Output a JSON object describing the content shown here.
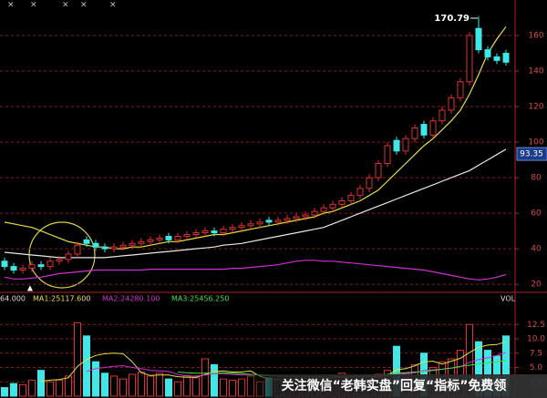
{
  "chart_data": [
    {
      "type": "candlestick",
      "open": [
        33,
        30,
        28,
        29,
        31,
        30,
        33,
        34,
        37,
        45,
        43,
        41,
        40,
        41,
        42,
        43,
        44,
        45,
        47,
        45,
        47,
        48,
        49,
        50,
        49,
        51,
        52,
        53,
        54,
        56,
        55,
        56,
        57,
        58,
        59,
        61,
        63,
        65,
        67,
        70,
        74,
        80,
        88,
        101,
        95,
        102,
        110,
        104,
        112,
        118,
        125,
        134,
        164,
        152,
        148,
        150
      ],
      "high": [
        35,
        32,
        31,
        33,
        33,
        35,
        36,
        39,
        44,
        47,
        45,
        43,
        43,
        44,
        45,
        46,
        47,
        48,
        49,
        49,
        50,
        51,
        52,
        52,
        53,
        54,
        55,
        56,
        57,
        58,
        58,
        59,
        60,
        61,
        63,
        65,
        67,
        69,
        72,
        76,
        82,
        90,
        100,
        103,
        104,
        110,
        112,
        114,
        120,
        127,
        136,
        162,
        170.79,
        154,
        150,
        152
      ],
      "low": [
        28,
        26,
        26,
        27,
        28,
        28,
        31,
        32,
        35,
        41,
        39,
        38,
        38,
        39,
        40,
        41,
        42,
        43,
        43,
        43,
        45,
        46,
        47,
        47,
        47,
        49,
        50,
        51,
        52,
        53,
        53,
        54,
        55,
        56,
        57,
        59,
        61,
        63,
        65,
        68,
        72,
        78,
        86,
        93,
        93,
        100,
        102,
        102,
        110,
        116,
        123,
        132,
        150,
        146,
        144,
        143
      ],
      "close": [
        30,
        28,
        29,
        31,
        30,
        33,
        34,
        37,
        42,
        43,
        41,
        40,
        41,
        42,
        43,
        44,
        45,
        46,
        45,
        47,
        48,
        49,
        50,
        49,
        51,
        52,
        53,
        54,
        55,
        55,
        56,
        57,
        58,
        59,
        61,
        63,
        65,
        67,
        70,
        74,
        80,
        88,
        98,
        95,
        102,
        108,
        104,
        112,
        118,
        125,
        134,
        160,
        152,
        148,
        146,
        145
      ],
      "up_color": "#e03030",
      "down_color": "#3ee8e8",
      "lines": [
        {
          "color": "#e8e040",
          "values": [
            55,
            54,
            53,
            52,
            50,
            48,
            46,
            44,
            43,
            42,
            41,
            41,
            40,
            40,
            41,
            41,
            42,
            43,
            44,
            44,
            45,
            46,
            47,
            48,
            48,
            49,
            50,
            51,
            52,
            53,
            54,
            55,
            56,
            57,
            58,
            60,
            61,
            63,
            65,
            67,
            70,
            73,
            78,
            83,
            88,
            93,
            98,
            102,
            107,
            112,
            118,
            127,
            138,
            150,
            158,
            165
          ]
        },
        {
          "color": "#e8e8e8",
          "values": [
            38,
            37.5,
            37,
            36.5,
            36,
            35.5,
            35,
            35,
            35,
            35,
            35,
            35,
            35.5,
            36,
            36.5,
            37,
            37.5,
            38,
            38.5,
            39,
            39.5,
            40,
            40.5,
            41,
            42,
            42.5,
            43,
            44,
            45,
            46,
            47,
            48,
            49,
            50,
            51,
            52,
            54,
            56,
            58,
            60,
            62,
            64,
            66,
            68,
            70,
            72,
            74,
            76,
            78,
            80,
            82,
            84,
            87,
            90,
            93,
            96
          ]
        },
        {
          "color": "#d030d0",
          "values": [
            24,
            23,
            23,
            23.5,
            24,
            25,
            26,
            26.5,
            27,
            27.5,
            28,
            28,
            28,
            28,
            28,
            28,
            28.5,
            28.5,
            28.5,
            28.5,
            28.5,
            28.5,
            28.5,
            28.5,
            28.5,
            29,
            29,
            29.5,
            30,
            30.5,
            31,
            32,
            33,
            33.5,
            33.5,
            33,
            33,
            32.5,
            32,
            31.5,
            31,
            30.5,
            30,
            29.5,
            29,
            28.5,
            28,
            27,
            26,
            25,
            24,
            23,
            22.5,
            23,
            24,
            25.5
          ]
        }
      ],
      "marker": 93.35,
      "annotation": "170.79",
      "ylim": [
        17,
        180
      ],
      "yticks": [
        20,
        40,
        60,
        80,
        100,
        120,
        140,
        160
      ],
      "grid": true
    },
    {
      "type": "bar",
      "subtitle": "64.000",
      "label": "VOL",
      "values": [
        1.5,
        2.2,
        2.0,
        2.8,
        4.5,
        2.5,
        2.8,
        3.5,
        12.8,
        10.5,
        6.0,
        4.0,
        3.5,
        3.0,
        3.8,
        4.2,
        3.5,
        4.0,
        3.0,
        2.5,
        3.6,
        3.2,
        6.5,
        5.5,
        3.0,
        2.8,
        3.0,
        3.5,
        2.5,
        3.2,
        2.8,
        3.0,
        3.2,
        3.5,
        2.5,
        3.0,
        3.6,
        4.0,
        3.5,
        2.8,
        3.2,
        3.8,
        4.5,
        8.7,
        4.0,
        5.5,
        7.5,
        5.0,
        6.0,
        6.5,
        8.0,
        12.5,
        9.5,
        8.0,
        7.0,
        10.5
      ],
      "series": [
        {
          "name": "MA1:25117.600",
          "color": "#e8e040",
          "values": [
            null,
            null,
            null,
            null,
            2.6,
            2.8,
            2.9,
            3.2,
            5.2,
            6.4,
            7.1,
            7.4,
            7.5,
            7.4,
            6.0,
            4.1,
            3.6,
            3.7,
            3.7,
            3.4,
            3.3,
            3.3,
            3.8,
            4.3,
            4.4,
            4.2,
            4.2,
            4.4,
            3.5,
            3.0,
            3.0,
            3.0,
            2.9,
            3.1,
            3.0,
            3.0,
            3.2,
            3.3,
            3.3,
            3.4,
            3.4,
            3.5,
            3.6,
            4.6,
            4.8,
            5.3,
            6.0,
            6.1,
            5.6,
            6.1,
            6.6,
            7.6,
            8.5,
            8.9,
            9.0,
            9.5
          ]
        },
        {
          "name": "MA2:24280.100",
          "color": "#d030d0",
          "values": [
            null,
            null,
            null,
            null,
            null,
            null,
            null,
            null,
            null,
            4.3,
            4.8,
            5.0,
            5.2,
            5.3,
            5.0,
            4.8,
            4.5,
            4.4,
            4.3,
            3.8,
            3.5,
            3.5,
            3.7,
            3.9,
            3.9,
            3.8,
            3.7,
            3.7,
            3.7,
            3.6,
            3.5,
            3.4,
            3.4,
            3.4,
            3.4,
            3.3,
            3.3,
            3.4,
            3.4,
            3.3,
            3.3,
            3.3,
            3.4,
            3.8,
            3.9,
            4.1,
            4.5,
            4.6,
            4.7,
            4.9,
            5.1,
            5.9,
            6.4,
            6.7,
            7.1,
            7.6
          ]
        },
        {
          "name": "MA3:25456.250",
          "color": "#40e040",
          "values": [
            null,
            null,
            null,
            null,
            null,
            null,
            null,
            null,
            null,
            null,
            null,
            null,
            null,
            null,
            null,
            null,
            null,
            null,
            null,
            4.2,
            4.1,
            4.0,
            4.0,
            4.1,
            4.1,
            4.0,
            3.9,
            3.8,
            3.7,
            3.6,
            3.5,
            3.5,
            3.5,
            3.4,
            3.4,
            3.5,
            3.5,
            3.5,
            3.5,
            3.5,
            3.6,
            3.7,
            3.8,
            4.0,
            4.1,
            4.2,
            4.3,
            4.5,
            4.7,
            4.9,
            5.2,
            5.4,
            5.6,
            5.8,
            6.0,
            6.2
          ]
        }
      ],
      "ylim": [
        0,
        15.4
      ],
      "yticks": [
        2.5,
        {
          "value": 5,
          "label": "5.0"
        },
        7.5,
        {
          "value": 10,
          "label": "10.0"
        },
        12.5
      ],
      "grid": true
    }
  ],
  "watermark": "关注微信“老韩实盘”回复“指标”免费领"
}
